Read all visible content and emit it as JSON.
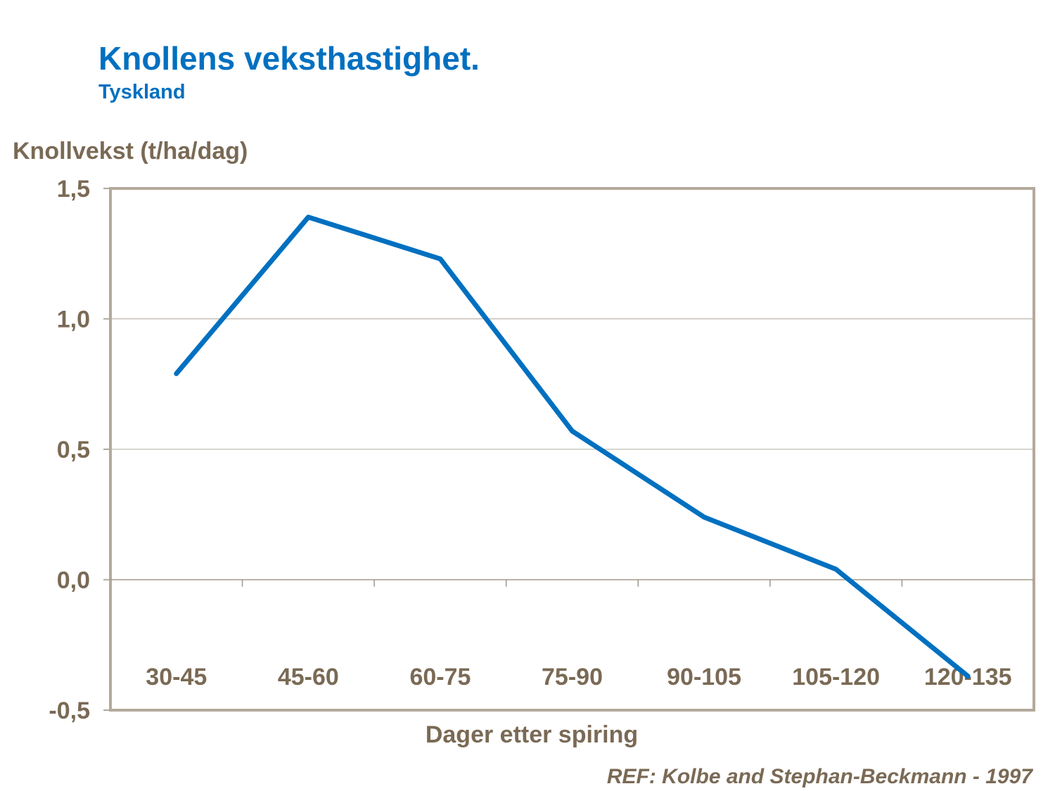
{
  "chart_data": {
    "type": "line",
    "title": "Knollens veksthastighet.",
    "subtitle": "Tyskland",
    "ylabel": "Knollvekst (t/ha/dag)",
    "xlabel": "Dager etter spiring",
    "categories": [
      "30-45",
      "45-60",
      "60-75",
      "75-90",
      "90-105",
      "105-120",
      "120-135"
    ],
    "values": [
      0.79,
      1.39,
      1.23,
      0.57,
      0.24,
      0.04,
      -0.37
    ],
    "ylim": [
      -0.5,
      1.5
    ],
    "yticks": [
      -0.5,
      0.0,
      0.5,
      1.0,
      1.5
    ],
    "ytick_labels": [
      "-0,5",
      "0,0",
      "0,5",
      "1,0",
      "1,5"
    ],
    "grid": "horizontal",
    "line_color": "#0070c0",
    "annotation": "REF: Kolbe and Stephan-Beckmann  - 1997"
  }
}
